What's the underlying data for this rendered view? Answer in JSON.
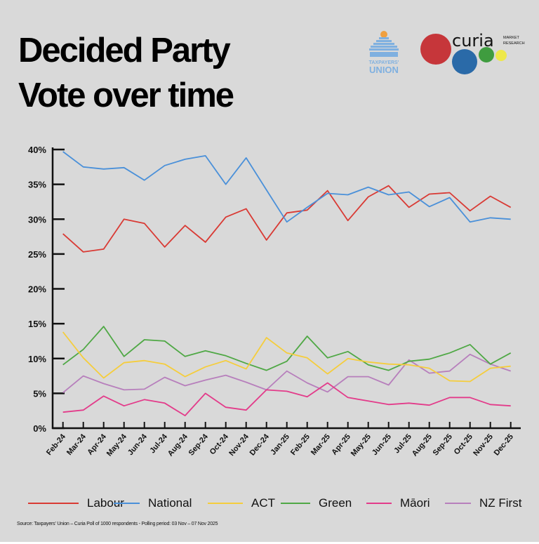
{
  "title_line1": "Decided Party",
  "title_line2": "Vote over time",
  "logos": {
    "taxpayers_union": "TAXPAYERS' UNION",
    "curia": "curia",
    "curia_sub1": "MARKET",
    "curia_sub2": "RESEARCH"
  },
  "source": "Source: Taxpayers' Union – Curia Poll of 1000 respondents - Polling period: 03 Nov – 07 Nov 2025",
  "chart_data": {
    "type": "line",
    "title": "Decided Party Vote over time",
    "xlabel": "",
    "ylabel": "",
    "ylim": [
      0,
      40
    ],
    "yticks": [
      "0%",
      "5%",
      "10%",
      "15%",
      "20%",
      "25%",
      "30%",
      "35%",
      "40%"
    ],
    "grid": false,
    "legend_position": "bottom",
    "categories": [
      "Feb-24",
      "Mar-24",
      "Apr-24",
      "May-24",
      "Jun-24",
      "Jul-24",
      "Aug-24",
      "Sep-24",
      "Oct-24",
      "Nov-24",
      "Dec-24",
      "Jan-25",
      "Feb-25",
      "Mar-25",
      "Apr-25",
      "May-25",
      "Jun-25",
      "Jul-25",
      "Aug-25",
      "Sep-25",
      "Oct-25",
      "Nov-25",
      "Dec-25"
    ],
    "series": [
      {
        "name": "Labour",
        "color": "#d93a34",
        "values": [
          27.9,
          25.3,
          25.7,
          30.0,
          29.4,
          26.0,
          29.1,
          26.7,
          30.3,
          31.5,
          27.0,
          30.9,
          31.3,
          34.1,
          29.8,
          33.2,
          34.8,
          31.7,
          33.6,
          33.8,
          31.2,
          33.3,
          31.7
        ]
      },
      {
        "name": "National",
        "color": "#4a90d9",
        "values": [
          39.7,
          37.5,
          37.2,
          37.4,
          35.6,
          37.7,
          38.6,
          39.1,
          35.0,
          38.8,
          34.2,
          29.6,
          31.7,
          33.7,
          33.5,
          34.6,
          33.5,
          33.9,
          31.8,
          33.1,
          29.6,
          30.2,
          30.0
        ]
      },
      {
        "name": "ACT",
        "color": "#f5cd3c",
        "values": [
          13.8,
          10.1,
          7.2,
          9.4,
          9.7,
          9.2,
          7.4,
          8.8,
          9.7,
          8.5,
          13.0,
          10.8,
          10.1,
          7.8,
          10.0,
          9.5,
          9.2,
          9.1,
          8.6,
          6.8,
          6.7,
          8.6,
          8.9
        ]
      },
      {
        "name": "Green",
        "color": "#4fa845",
        "values": [
          9.1,
          11.3,
          14.6,
          10.3,
          12.7,
          12.5,
          10.3,
          11.1,
          10.4,
          9.3,
          8.3,
          9.6,
          13.2,
          10.1,
          11.0,
          9.1,
          8.3,
          9.6,
          9.9,
          10.8,
          12.0,
          9.2,
          10.8
        ]
      },
      {
        "name": "Māori",
        "color": "#e33b8a",
        "values": [
          2.3,
          2.6,
          4.6,
          3.2,
          4.1,
          3.6,
          1.8,
          5.0,
          3.0,
          2.6,
          5.5,
          5.3,
          4.5,
          6.5,
          4.4,
          3.9,
          3.4,
          3.6,
          3.3,
          4.4,
          4.4,
          3.4,
          3.2
        ]
      },
      {
        "name": "NZ First",
        "color": "#b77fbc",
        "values": [
          5.1,
          7.5,
          6.4,
          5.5,
          5.6,
          7.3,
          6.1,
          6.9,
          7.6,
          6.6,
          5.5,
          8.2,
          6.5,
          5.2,
          7.4,
          7.4,
          6.2,
          9.8,
          7.9,
          8.2,
          10.6,
          9.2,
          8.2
        ]
      }
    ]
  }
}
